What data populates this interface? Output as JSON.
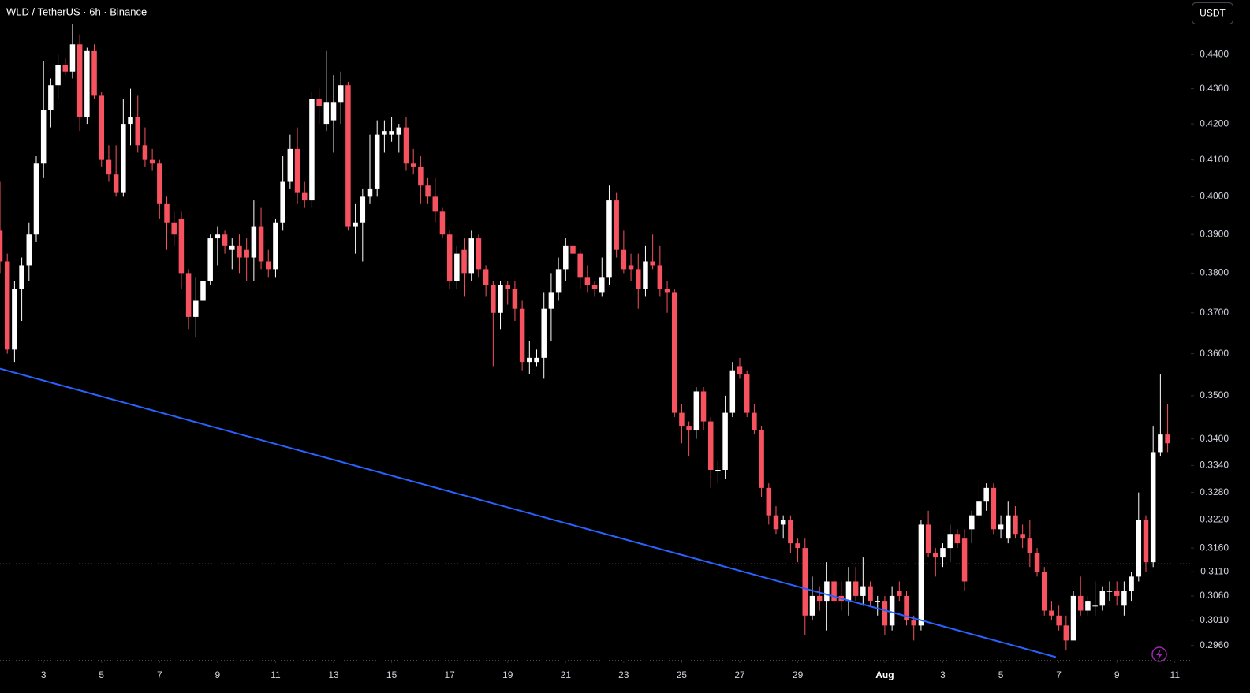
{
  "chart_data": {
    "type": "candlestick",
    "title": "WLD / TetherUS · 6h · Binance",
    "currency": "USDT",
    "log": true,
    "up_color": "#ffffff",
    "down_color": "#f7525f",
    "x": [
      1.5,
      1.75,
      2,
      2.25,
      2.5,
      2.75,
      3,
      3.25,
      3.5,
      3.75,
      4,
      4.25,
      4.5,
      4.75,
      5,
      5.25,
      5.5,
      5.75,
      6,
      6.25,
      6.5,
      6.75,
      7,
      7.25,
      7.5,
      7.75,
      8,
      8.25,
      8.5,
      8.75,
      9,
      9.25,
      9.5,
      9.75,
      10,
      10.25,
      10.5,
      10.75,
      11,
      11.25,
      11.5,
      11.75,
      12,
      12.25,
      12.5,
      12.75,
      13,
      13.25,
      13.5,
      13.75,
      14,
      14.25,
      14.5,
      14.75,
      15,
      15.25,
      15.5,
      15.75,
      16,
      16.25,
      16.5,
      16.75,
      17,
      17.25,
      17.5,
      17.75,
      18,
      18.25,
      18.5,
      18.75,
      19,
      19.25,
      19.5,
      19.75,
      20,
      20.25,
      20.5,
      20.75,
      21,
      21.25,
      21.5,
      21.75,
      22,
      22.25,
      22.5,
      22.75,
      23,
      23.25,
      23.5,
      23.75,
      24,
      24.25,
      24.5,
      24.75,
      25,
      25.25,
      25.5,
      25.75,
      26,
      26.25,
      26.5,
      26.75,
      27,
      27.25,
      27.5,
      27.75,
      28,
      28.25,
      28.5,
      28.75,
      29,
      29.25,
      29.5,
      29.75,
      30,
      30.25,
      30.5,
      30.75,
      31,
      31.25,
      31.5,
      31.75,
      32,
      32.25,
      32.5,
      32.75,
      33,
      33.25,
      33.5,
      33.75,
      34,
      34.25,
      34.5,
      34.75,
      35,
      35.25,
      35.5,
      35.75,
      36,
      36.25,
      36.5,
      36.75,
      37,
      37.25,
      37.5,
      37.75,
      38,
      38.25,
      38.5,
      38.75,
      39,
      39.25,
      39.5,
      39.75,
      40,
      40.25,
      40.5,
      40.75,
      41,
      41.25,
      41.5,
      41.75
    ],
    "open": [
      0.391,
      0.383,
      0.361,
      0.376,
      0.382,
      0.39,
      0.409,
      0.424,
      0.431,
      0.437,
      0.435,
      0.443,
      0.422,
      0.441,
      0.428,
      0.41,
      0.406,
      0.401,
      0.42,
      0.422,
      0.414,
      0.41,
      0.409,
      0.398,
      0.393,
      0.394,
      0.38,
      0.369,
      0.373,
      0.378,
      0.389,
      0.39,
      0.386,
      0.387,
      0.386,
      0.384,
      0.392,
      0.383,
      0.381,
      0.393,
      0.404,
      0.413,
      0.401,
      0.399,
      0.427,
      0.42,
      0.421,
      0.426,
      0.431,
      0.392,
      0.393,
      0.4,
      0.402,
      0.417,
      0.417,
      0.417,
      0.419,
      0.409,
      0.408,
      0.403,
      0.4,
      0.396,
      0.39,
      0.378,
      0.386,
      0.38,
      0.389,
      0.381,
      0.377,
      0.37,
      0.377,
      0.376,
      0.371,
      0.358,
      0.358,
      0.359,
      0.371,
      0.375,
      0.381,
      0.387,
      0.385,
      0.379,
      0.377,
      0.375,
      0.379,
      0.399,
      0.386,
      0.382,
      0.381,
      0.376,
      0.383,
      0.382,
      0.376,
      0.375,
      0.346,
      0.343,
      0.342,
      0.351,
      0.344,
      0.333,
      0.333,
      0.346,
      0.357,
      0.355,
      0.346,
      0.342,
      0.329,
      0.323,
      0.321,
      0.322,
      0.317,
      0.316,
      0.302,
      0.306,
      0.305,
      0.309,
      0.306,
      0.305,
      0.309,
      0.306,
      0.308,
      0.305,
      0.305,
      0.3,
      0.307,
      0.306,
      0.301,
      0.3,
      0.321,
      0.315,
      0.314,
      0.316,
      0.319,
      0.318,
      0.32,
      0.323,
      0.326,
      0.329,
      0.32,
      0.318,
      0.323,
      0.319,
      0.318,
      0.315,
      0.311,
      0.303,
      0.302,
      0.3,
      0.297,
      0.306,
      0.303,
      0.304,
      0.304,
      0.307,
      0.307,
      0.304,
      0.307,
      0.31,
      0.322,
      0.313,
      0.337,
      0.341
    ],
    "high": [
      0.404,
      0.385,
      0.378,
      0.384,
      0.393,
      0.411,
      0.438,
      0.433,
      0.44,
      0.439,
      0.449,
      0.446,
      0.442,
      0.443,
      0.429,
      0.414,
      0.414,
      0.427,
      0.43,
      0.428,
      0.419,
      0.413,
      0.41,
      0.4,
      0.396,
      0.396,
      0.381,
      0.379,
      0.381,
      0.39,
      0.392,
      0.391,
      0.389,
      0.39,
      0.389,
      0.399,
      0.397,
      0.386,
      0.394,
      0.411,
      0.417,
      0.419,
      0.404,
      0.429,
      0.43,
      0.441,
      0.434,
      0.435,
      0.432,
      0.398,
      0.402,
      0.417,
      0.421,
      0.421,
      0.422,
      0.42,
      0.422,
      0.413,
      0.411,
      0.405,
      0.405,
      0.397,
      0.391,
      0.387,
      0.389,
      0.391,
      0.39,
      0.382,
      0.378,
      0.378,
      0.378,
      0.378,
      0.373,
      0.363,
      0.361,
      0.375,
      0.38,
      0.384,
      0.389,
      0.388,
      0.386,
      0.382,
      0.378,
      0.384,
      0.403,
      0.401,
      0.391,
      0.385,
      0.385,
      0.387,
      0.39,
      0.387,
      0.378,
      0.376,
      0.348,
      0.344,
      0.352,
      0.352,
      0.345,
      0.335,
      0.35,
      0.358,
      0.359,
      0.356,
      0.348,
      0.343,
      0.33,
      0.325,
      0.323,
      0.323,
      0.318,
      0.318,
      0.31,
      0.308,
      0.313,
      0.311,
      0.309,
      0.312,
      0.312,
      0.314,
      0.309,
      0.306,
      0.306,
      0.308,
      0.309,
      0.307,
      0.302,
      0.322,
      0.324,
      0.316,
      0.317,
      0.321,
      0.32,
      0.32,
      0.324,
      0.331,
      0.33,
      0.33,
      0.323,
      0.326,
      0.325,
      0.321,
      0.322,
      0.316,
      0.312,
      0.305,
      0.304,
      0.302,
      0.307,
      0.31,
      0.306,
      0.309,
      0.308,
      0.309,
      0.309,
      0.309,
      0.311,
      0.328,
      0.323,
      0.343,
      0.355,
      0.348
    ],
    "low": [
      0.38,
      0.36,
      0.358,
      0.368,
      0.378,
      0.388,
      0.405,
      0.419,
      0.427,
      0.434,
      0.433,
      0.418,
      0.42,
      0.427,
      0.408,
      0.404,
      0.4,
      0.4,
      0.414,
      0.412,
      0.408,
      0.407,
      0.394,
      0.386,
      0.387,
      0.376,
      0.366,
      0.364,
      0.372,
      0.377,
      0.382,
      0.385,
      0.381,
      0.38,
      0.378,
      0.378,
      0.381,
      0.379,
      0.379,
      0.391,
      0.402,
      0.398,
      0.397,
      0.397,
      0.42,
      0.418,
      0.412,
      0.42,
      0.391,
      0.385,
      0.383,
      0.398,
      0.4,
      0.412,
      0.415,
      0.412,
      0.407,
      0.406,
      0.398,
      0.398,
      0.393,
      0.389,
      0.376,
      0.376,
      0.374,
      0.378,
      0.379,
      0.374,
      0.357,
      0.366,
      0.372,
      0.368,
      0.356,
      0.355,
      0.357,
      0.354,
      0.363,
      0.373,
      0.378,
      0.383,
      0.376,
      0.375,
      0.374,
      0.374,
      0.377,
      0.384,
      0.38,
      0.378,
      0.371,
      0.374,
      0.381,
      0.374,
      0.37,
      0.345,
      0.339,
      0.336,
      0.34,
      0.342,
      0.329,
      0.33,
      0.331,
      0.345,
      0.354,
      0.345,
      0.341,
      0.327,
      0.321,
      0.319,
      0.318,
      0.315,
      0.313,
      0.298,
      0.301,
      0.303,
      0.299,
      0.304,
      0.303,
      0.302,
      0.305,
      0.304,
      0.304,
      0.302,
      0.298,
      0.299,
      0.305,
      0.3,
      0.297,
      0.299,
      0.314,
      0.31,
      0.312,
      0.313,
      0.316,
      0.307,
      0.317,
      0.322,
      0.324,
      0.319,
      0.318,
      0.317,
      0.318,
      0.316,
      0.312,
      0.31,
      0.302,
      0.301,
      0.299,
      0.295,
      0.297,
      0.302,
      0.302,
      0.302,
      0.303,
      0.305,
      0.304,
      0.302,
      0.305,
      0.309,
      0.311,
      0.312,
      0.336,
      0.337
    ],
    "close": [
      0.383,
      0.361,
      0.376,
      0.382,
      0.39,
      0.409,
      0.424,
      0.431,
      0.437,
      0.435,
      0.443,
      0.422,
      0.441,
      0.428,
      0.41,
      0.406,
      0.401,
      0.42,
      0.422,
      0.414,
      0.41,
      0.409,
      0.398,
      0.393,
      0.39,
      0.38,
      0.369,
      0.373,
      0.378,
      0.389,
      0.39,
      0.387,
      0.387,
      0.384,
      0.384,
      0.392,
      0.383,
      0.381,
      0.393,
      0.404,
      0.413,
      0.401,
      0.399,
      0.427,
      0.425,
      0.426,
      0.426,
      0.431,
      0.392,
      0.393,
      0.4,
      0.402,
      0.417,
      0.418,
      0.418,
      0.419,
      0.409,
      0.408,
      0.403,
      0.4,
      0.396,
      0.39,
      0.378,
      0.385,
      0.38,
      0.389,
      0.381,
      0.377,
      0.37,
      0.377,
      0.376,
      0.371,
      0.358,
      0.359,
      0.359,
      0.371,
      0.375,
      0.381,
      0.387,
      0.385,
      0.379,
      0.377,
      0.376,
      0.379,
      0.399,
      0.386,
      0.381,
      0.381,
      0.376,
      0.383,
      0.382,
      0.376,
      0.375,
      0.346,
      0.343,
      0.342,
      0.351,
      0.344,
      0.333,
      0.333,
      0.346,
      0.356,
      0.355,
      0.346,
      0.342,
      0.329,
      0.323,
      0.32,
      0.322,
      0.317,
      0.316,
      0.302,
      0.306,
      0.305,
      0.309,
      0.305,
      0.305,
      0.309,
      0.306,
      0.308,
      0.305,
      0.305,
      0.3,
      0.306,
      0.306,
      0.301,
      0.3,
      0.321,
      0.315,
      0.314,
      0.316,
      0.319,
      0.317,
      0.309,
      0.323,
      0.326,
      0.329,
      0.32,
      0.321,
      0.323,
      0.319,
      0.318,
      0.315,
      0.311,
      0.303,
      0.302,
      0.3,
      0.297,
      0.306,
      0.303,
      0.305,
      0.304,
      0.307,
      0.307,
      0.306,
      0.307,
      0.31,
      0.322,
      0.313,
      0.337,
      0.341,
      0.339
    ],
    "trendline": {
      "x": [
        1.5,
        37.9
      ],
      "y": [
        0.3564,
        0.2937
      ],
      "color": "#2962ff"
    },
    "hline": 0.3127,
    "xlim": [
      1.5,
      42.55
    ],
    "ylim": [
      0.293,
      0.4492
    ],
    "xticks": [
      3,
      5,
      7,
      9,
      11,
      13,
      15,
      17,
      19,
      21,
      23,
      25,
      27,
      29,
      {
        "value": 32,
        "label": "Aug"
      },
      {
        "value": 34,
        "label": "3"
      },
      {
        "value": 36,
        "label": "5"
      },
      {
        "value": 38,
        "label": "7"
      },
      {
        "value": 40,
        "label": "9"
      },
      {
        "value": 42,
        "label": "11"
      }
    ],
    "yticks": [
      {
        "value": 0.44,
        "label": "0.4400"
      },
      {
        "value": 0.43,
        "label": "0.4300"
      },
      {
        "value": 0.42,
        "label": "0.4200"
      },
      {
        "value": 0.41,
        "label": "0.4100"
      },
      {
        "value": 0.4,
        "label": "0.4000"
      },
      {
        "value": 0.39,
        "label": "0.3900"
      },
      {
        "value": 0.38,
        "label": "0.3800"
      },
      {
        "value": 0.37,
        "label": "0.3700"
      },
      {
        "value": 0.36,
        "label": "0.3600"
      },
      {
        "value": 0.35,
        "label": "0.3500"
      },
      {
        "value": 0.34,
        "label": "0.3400"
      },
      {
        "value": 0.334,
        "label": "0.3340"
      },
      {
        "value": 0.328,
        "label": "0.3280"
      },
      {
        "value": 0.322,
        "label": "0.3220"
      },
      {
        "value": 0.316,
        "label": "0.3160"
      },
      {
        "value": 0.311,
        "label": "0.3110"
      },
      {
        "value": 0.306,
        "label": "0.3060"
      },
      {
        "value": 0.301,
        "label": "0.3010"
      },
      {
        "value": 0.296,
        "label": "0.2960"
      }
    ]
  }
}
